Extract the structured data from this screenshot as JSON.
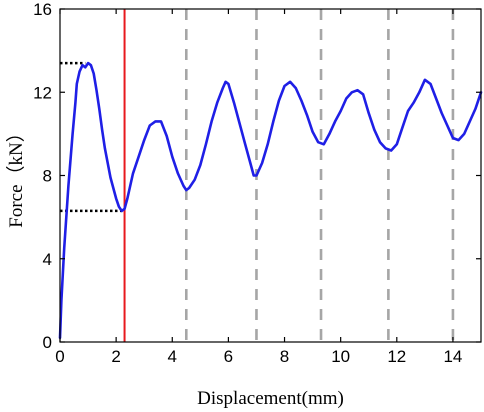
{
  "chart_data": {
    "type": "line",
    "title": "",
    "xlabel": "Displacement(mm)",
    "ylabel": "Force（kN）",
    "xlim": [
      0,
      15
    ],
    "ylim": [
      0,
      16
    ],
    "x_ticks": [
      0,
      2,
      4,
      6,
      8,
      10,
      12,
      14
    ],
    "y_ticks": [
      0,
      4,
      8,
      12,
      16
    ],
    "grid": false,
    "colors": {
      "curve": "#1f1fe6",
      "red_marker": "#e8191e",
      "dashed_gray": "#a6a6a6",
      "dotted_black": "#000000"
    },
    "series": [
      {
        "x": [
          0.0,
          0.05,
          0.15,
          0.3,
          0.45,
          0.55,
          0.6,
          0.7,
          0.8,
          0.9,
          1.0,
          1.1,
          1.2,
          1.3,
          1.4,
          1.5,
          1.6,
          1.7,
          1.8,
          1.9,
          2.0,
          2.1,
          2.2,
          2.3,
          2.4,
          2.5,
          2.6,
          2.8,
          3.0,
          3.2,
          3.4,
          3.6,
          3.8,
          4.0,
          4.2,
          4.4,
          4.5,
          4.6,
          4.8,
          5.0,
          5.2,
          5.4,
          5.6,
          5.8,
          5.9,
          6.0,
          6.2,
          6.4,
          6.6,
          6.8,
          6.9,
          7.0,
          7.2,
          7.4,
          7.6,
          7.8,
          8.0,
          8.2,
          8.4,
          8.6,
          8.8,
          9.0,
          9.2,
          9.4,
          9.6,
          9.8,
          10.0,
          10.2,
          10.4,
          10.6,
          10.8,
          11.0,
          11.2,
          11.4,
          11.6,
          11.8,
          12.0,
          12.2,
          12.4,
          12.6,
          12.8,
          13.0,
          13.2,
          13.4,
          13.6,
          13.8,
          14.0,
          14.2,
          14.4,
          14.6,
          14.8,
          15.0
        ],
        "y": [
          0.2,
          2.0,
          4.5,
          7.5,
          10.0,
          11.5,
          12.4,
          13.0,
          13.3,
          13.2,
          13.4,
          13.3,
          12.9,
          12.1,
          11.2,
          10.2,
          9.3,
          8.6,
          7.9,
          7.4,
          6.9,
          6.5,
          6.3,
          6.4,
          6.9,
          7.5,
          8.1,
          8.9,
          9.7,
          10.4,
          10.6,
          10.6,
          9.9,
          8.9,
          8.1,
          7.5,
          7.3,
          7.4,
          7.8,
          8.5,
          9.5,
          10.6,
          11.5,
          12.2,
          12.5,
          12.4,
          11.5,
          10.5,
          9.5,
          8.5,
          8.0,
          8.0,
          8.6,
          9.5,
          10.6,
          11.6,
          12.3,
          12.5,
          12.2,
          11.6,
          10.9,
          10.1,
          9.6,
          9.5,
          10.0,
          10.6,
          11.1,
          11.7,
          12.0,
          12.1,
          11.9,
          11.0,
          10.2,
          9.6,
          9.3,
          9.2,
          9.5,
          10.3,
          11.1,
          11.5,
          12.0,
          12.6,
          12.4,
          11.7,
          11.0,
          10.4,
          9.8,
          9.7,
          10.0,
          10.6,
          11.2,
          12.0
        ]
      }
    ],
    "reference_lines": {
      "red_vertical_x": 2.3,
      "dashed_vertical_x": [
        4.5,
        7.0,
        9.3,
        11.7,
        14.0
      ],
      "dotted_horizontal": [
        {
          "y": 13.4,
          "x_end": 0.9
        },
        {
          "y": 6.3,
          "x_end": 2.3
        }
      ]
    }
  }
}
